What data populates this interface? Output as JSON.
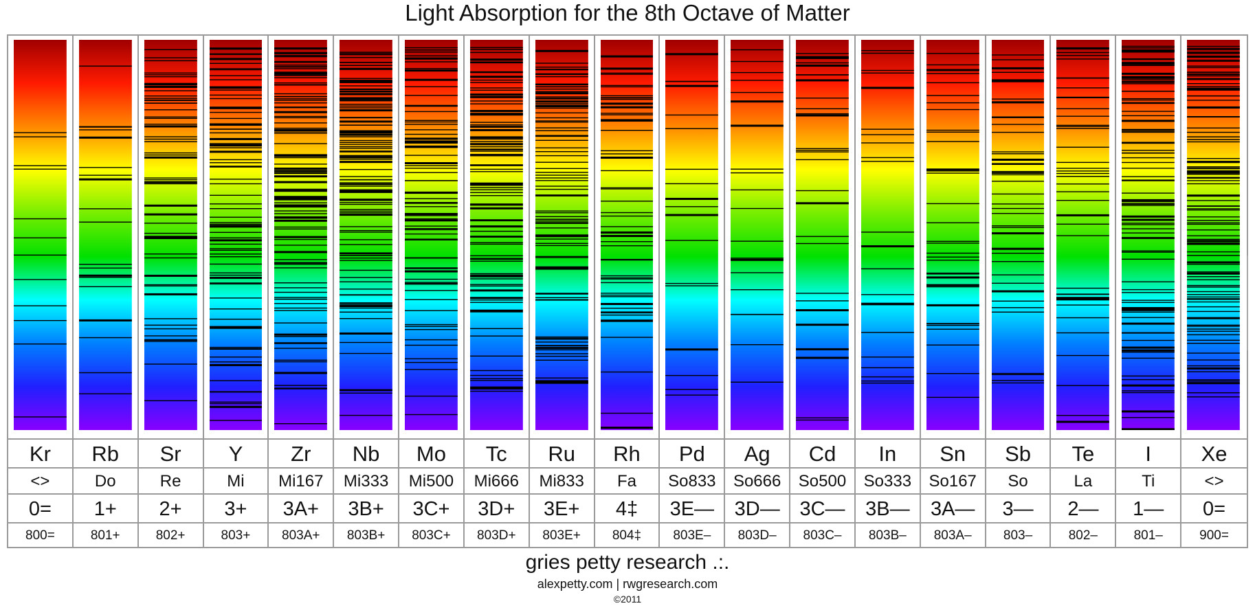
{
  "title": "Light Absorption for the 8th Octave of Matter",
  "watermark": "alexpetty.com",
  "columns": [
    {
      "element": "Kr",
      "note": "<>",
      "symbol": "0=",
      "code": "800="
    },
    {
      "element": "Rb",
      "note": "Do",
      "symbol": "1+",
      "code": "801+"
    },
    {
      "element": "Sr",
      "note": "Re",
      "symbol": "2+",
      "code": "802+"
    },
    {
      "element": "Y",
      "note": "Mi",
      "symbol": "3+",
      "code": "803+"
    },
    {
      "element": "Zr",
      "note": "Mi167",
      "symbol": "3A+",
      "code": "803A+"
    },
    {
      "element": "Nb",
      "note": "Mi333",
      "symbol": "3B+",
      "code": "803B+"
    },
    {
      "element": "Mo",
      "note": "Mi500",
      "symbol": "3C+",
      "code": "803C+"
    },
    {
      "element": "Tc",
      "note": "Mi666",
      "symbol": "3D+",
      "code": "803D+"
    },
    {
      "element": "Ru",
      "note": "Mi833",
      "symbol": "3E+",
      "code": "803E+"
    },
    {
      "element": "Rh",
      "note": "Fa",
      "symbol": "4‡",
      "code": "804‡"
    },
    {
      "element": "Pd",
      "note": "So833",
      "symbol": "3E—",
      "code": "803E–"
    },
    {
      "element": "Ag",
      "note": "So666",
      "symbol": "3D—",
      "code": "803D–"
    },
    {
      "element": "Cd",
      "note": "So500",
      "symbol": "3C—",
      "code": "803C–"
    },
    {
      "element": "In",
      "note": "So333",
      "symbol": "3B—",
      "code": "803B–"
    },
    {
      "element": "Sn",
      "note": "So167",
      "symbol": "3A—",
      "code": "803A–"
    },
    {
      "element": "Sb",
      "note": "So",
      "symbol": "3—",
      "code": "803–"
    },
    {
      "element": "Te",
      "note": "La",
      "symbol": "2—",
      "code": "802–"
    },
    {
      "element": "I",
      "note": "Ti",
      "symbol": "1—",
      "code": "801–"
    },
    {
      "element": "Xe",
      "note": "<>",
      "symbol": "0=",
      "code": "900="
    }
  ],
  "line_density": [
    12,
    20,
    55,
    80,
    110,
    120,
    75,
    95,
    90,
    55,
    18,
    20,
    28,
    22,
    35,
    45,
    40,
    90,
    110
  ],
  "spectrum_colors": [
    "#a00000",
    "#ff1a00",
    "#ff8800",
    "#ffff00",
    "#77ee00",
    "#00e000",
    "#00ffff",
    "#0080ff",
    "#2020ff",
    "#8800ff"
  ],
  "footer": {
    "title": "gries petty research .:.",
    "sites": "alexpetty.com | rwgresearch.com",
    "copyright": "©2011"
  }
}
